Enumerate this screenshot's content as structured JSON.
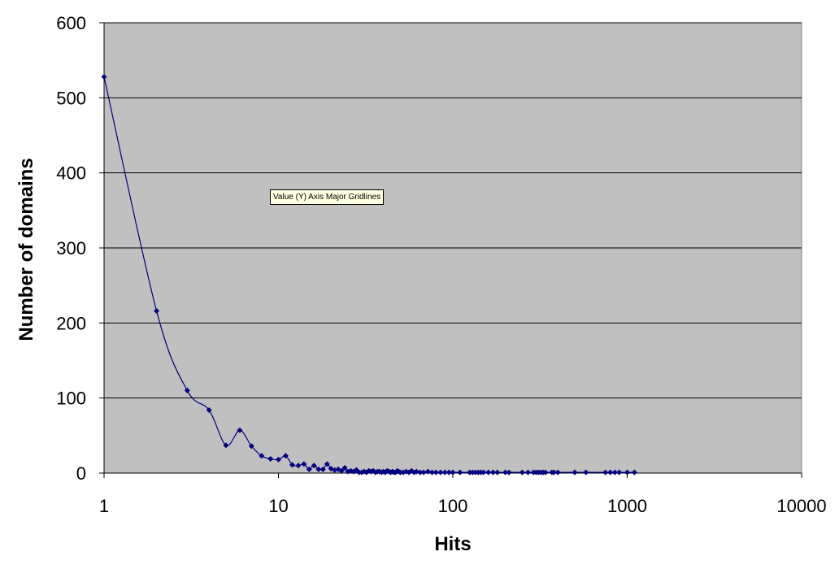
{
  "tooltip": {
    "text": "Value (Y) Axis Major Gridlines"
  },
  "chart_data": {
    "type": "scatter",
    "title": "",
    "xlabel": "Hits",
    "ylabel": "Number of domains",
    "x_scale": "log",
    "xlim": [
      1,
      10000
    ],
    "ylim": [
      0,
      600
    ],
    "x_ticks": [
      "1",
      "10",
      "100",
      "1000",
      "10000"
    ],
    "y_ticks": [
      "0",
      "100",
      "200",
      "300",
      "400",
      "500",
      "600"
    ],
    "grid": "horizontal major gridlines",
    "legend": "none",
    "colors": {
      "plot_area": "#c0c0c0",
      "series": "#000080",
      "gridline": "#000000"
    },
    "series": [
      {
        "x": [
          1,
          2,
          3,
          4,
          5,
          6,
          7,
          8,
          9,
          10,
          11,
          12,
          13,
          14,
          15,
          16,
          17,
          18,
          19,
          20,
          21,
          22,
          23,
          24,
          25,
          26,
          27,
          28,
          29,
          30,
          31,
          32,
          33,
          34,
          35,
          36,
          37,
          38,
          39,
          40,
          41,
          42,
          43,
          44,
          45,
          46,
          47,
          48,
          49,
          50,
          52,
          54,
          56,
          58,
          60,
          62,
          65,
          68,
          72,
          76,
          80,
          85,
          90,
          95,
          100,
          110,
          125,
          130,
          135,
          140,
          145,
          150,
          160,
          170,
          180,
          200,
          210,
          250,
          270,
          290,
          300,
          310,
          320,
          330,
          340,
          370,
          380,
          400,
          500,
          580,
          750,
          800,
          850,
          900,
          1000,
          1100
        ],
        "y": [
          528,
          216,
          110,
          84,
          37,
          57,
          36,
          23,
          19,
          18,
          23,
          11,
          10,
          12,
          5,
          10,
          5,
          5,
          12,
          6,
          4,
          5,
          3,
          7,
          2,
          3,
          2,
          4,
          1,
          1,
          2,
          1,
          3,
          2,
          3,
          1,
          2,
          2,
          1,
          2,
          1,
          3,
          2,
          1,
          2,
          1,
          1,
          3,
          2,
          1,
          1,
          2,
          1,
          3,
          1,
          2,
          1,
          1,
          2,
          1,
          1,
          1,
          1,
          1,
          1,
          1,
          1,
          1,
          1,
          1,
          1,
          1,
          1,
          1,
          1,
          1,
          1,
          1,
          1,
          1,
          1,
          1,
          1,
          1,
          1,
          1,
          1,
          1,
          1,
          1,
          1,
          1,
          1,
          1,
          1,
          1
        ]
      }
    ]
  }
}
